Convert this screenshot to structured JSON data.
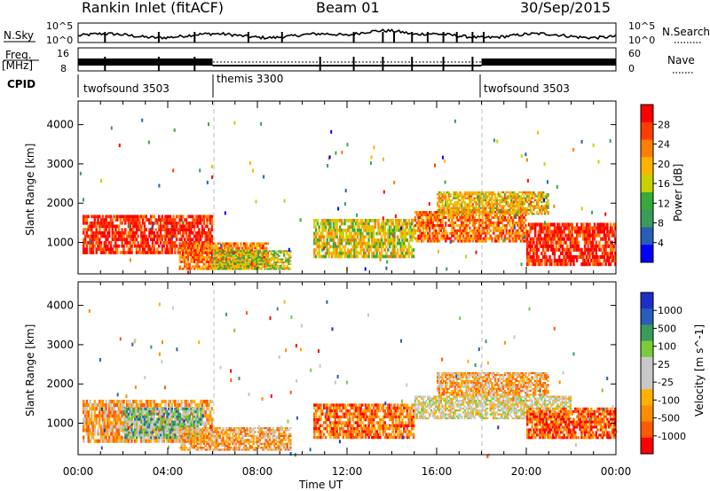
{
  "header": {
    "station": "Rankin Inlet (fitACF)",
    "beam": "Beam 01",
    "date": "30/Sep/2015"
  },
  "status_panels": {
    "nsky_label": "N.Sky",
    "nsearch_label": "N.Search",
    "noise_ticks": [
      "10^5",
      "10^0"
    ],
    "freq_label": "Freq.",
    "freq_unit": "[MHz]",
    "freq_ticks": [
      "16",
      "8"
    ],
    "nave_label": "Nave",
    "nave_ticks": [
      "60",
      "0"
    ],
    "cpid_label": "CPID",
    "cpid_segments": [
      {
        "name": "twofsound 3503",
        "start_hour": 0
      },
      {
        "name": "themis 3300",
        "start_hour": 6
      },
      {
        "name": "twofsound 3503",
        "start_hour": 18
      }
    ]
  },
  "colors": {
    "power": [
      "#0000ff",
      "#2a5db8",
      "#3c9a5a",
      "#39a83d",
      "#c8d200",
      "#ffb300",
      "#ff7f00",
      "#ff3c00",
      "#ff0000"
    ],
    "velocity": [
      "#ff0000",
      "#ff5a00",
      "#ff8c00",
      "#ffb000",
      "#c8c8c8",
      "#c8c8c8",
      "#7acc3c",
      "#3c9a5a",
      "#2a5db8",
      "#1e2ec8"
    ]
  },
  "chart_data": [
    {
      "type": "heatmap",
      "name": "power",
      "ylabel": "Slant Range [km]",
      "xlabel": "Time UT",
      "xlim": [
        0,
        24
      ],
      "ylim": [
        200,
        4600
      ],
      "x_ticks": [
        "00:00",
        "04:00",
        "08:00",
        "12:00",
        "16:00",
        "20:00",
        "00:00"
      ],
      "y_ticks": [
        1000,
        2000,
        3000,
        4000
      ],
      "colorbar_title": "Power [dB]",
      "colorbar_ticks": [
        "28",
        "24",
        "20",
        "16",
        "12",
        "8",
        "4"
      ],
      "vertical_markers_hours": [
        6,
        18
      ],
      "echo_regions": [
        {
          "start": 0.2,
          "end": 6.0,
          "range_min": 700,
          "range_max": 1700,
          "level": 0.9
        },
        {
          "start": 4.5,
          "end": 8.5,
          "range_min": 300,
          "range_max": 1000,
          "level": 0.75
        },
        {
          "start": 6.0,
          "end": 9.5,
          "range_min": 300,
          "range_max": 800,
          "level": 0.5
        },
        {
          "start": 10.5,
          "end": 15.0,
          "range_min": 600,
          "range_max": 1600,
          "level": 0.55
        },
        {
          "start": 15.0,
          "end": 20.0,
          "range_min": 1000,
          "range_max": 1800,
          "level": 0.75
        },
        {
          "start": 16.0,
          "end": 21.0,
          "range_min": 1700,
          "range_max": 2300,
          "level": 0.6
        },
        {
          "start": 20.0,
          "end": 24.0,
          "range_min": 400,
          "range_max": 1500,
          "level": 0.9
        }
      ]
    },
    {
      "type": "heatmap",
      "name": "velocity",
      "ylabel": "Slant Range [km]",
      "xlabel": "Time UT",
      "xlim": [
        0,
        24
      ],
      "ylim": [
        200,
        4600
      ],
      "x_ticks": [
        "00:00",
        "04:00",
        "08:00",
        "12:00",
        "16:00",
        "20:00",
        "00:00"
      ],
      "y_ticks": [
        1000,
        2000,
        3000,
        4000
      ],
      "colorbar_title": "Velocity [m s^-1]",
      "colorbar_ticks": [
        "1000",
        "500",
        "100",
        "25",
        "-25",
        "-100",
        "-500",
        "-1000"
      ],
      "vertical_markers_hours": [
        6,
        18
      ],
      "echo_regions": [
        {
          "start": 0.2,
          "end": 6.0,
          "range_min": 500,
          "range_max": 1600,
          "level": 0.3
        },
        {
          "start": 2.0,
          "end": 5.5,
          "range_min": 600,
          "range_max": 1400,
          "level": 0.65
        },
        {
          "start": 4.5,
          "end": 9.5,
          "range_min": 300,
          "range_max": 900,
          "level": 0.3
        },
        {
          "start": 10.5,
          "end": 15.0,
          "range_min": 600,
          "range_max": 1500,
          "level": 0.2
        },
        {
          "start": 15.0,
          "end": 22.0,
          "range_min": 1100,
          "range_max": 1700,
          "level": 0.48
        },
        {
          "start": 16.0,
          "end": 21.0,
          "range_min": 1700,
          "range_max": 2300,
          "level": 0.3
        },
        {
          "start": 20.0,
          "end": 24.0,
          "range_min": 600,
          "range_max": 1400,
          "level": 0.15
        }
      ]
    }
  ]
}
